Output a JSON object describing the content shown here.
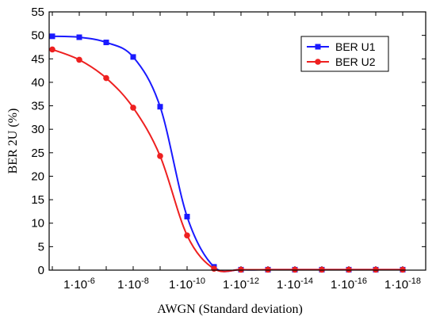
{
  "chart_data": {
    "type": "line",
    "xlabel": "AWGN (Standard deviation)",
    "ylabel": "BER 2U (%)",
    "ylim": [
      0,
      55
    ],
    "yticks": [
      0,
      5,
      10,
      15,
      20,
      25,
      30,
      35,
      40,
      45,
      50,
      55
    ],
    "x_scale": "log-reciprocal",
    "x_tick_labels": [
      {
        "label": "1·10",
        "exponent": "-6",
        "value": "1e-6"
      },
      {
        "label": "1·10",
        "exponent": "-8",
        "value": "1e-8"
      },
      {
        "label": "1·10",
        "exponent": "-10",
        "value": "1e-10"
      },
      {
        "label": "1·10",
        "exponent": "-12",
        "value": "1e-12"
      },
      {
        "label": "1·10",
        "exponent": "-14",
        "value": "1e-14"
      },
      {
        "label": "1·10",
        "exponent": "-16",
        "value": "1e-16"
      },
      {
        "label": "1·10",
        "exponent": "-18",
        "value": "1e-18"
      }
    ],
    "x": [
      "1e-5",
      "1e-6",
      "1e-7",
      "1e-8",
      "1e-9",
      "1e-10",
      "1e-11",
      "1e-12",
      "1e-13",
      "1e-14",
      "1e-15",
      "1e-16",
      "1e-17",
      "1e-18"
    ],
    "series": [
      {
        "name": "BER U1",
        "color": "#1a1aff",
        "marker": "square",
        "values": [
          49.8,
          49.6,
          48.5,
          45.4,
          34.8,
          11.4,
          0.7,
          0.1,
          0.1,
          0.1,
          0.1,
          0.1,
          0.1,
          0.1
        ]
      },
      {
        "name": "BER U2",
        "color": "#ee2020",
        "marker": "circle",
        "values": [
          47.0,
          44.8,
          40.9,
          34.6,
          24.3,
          7.4,
          0.3,
          0.1,
          0.1,
          0.1,
          0.1,
          0.1,
          0.1,
          0.1
        ]
      }
    ],
    "grid": false,
    "legend_position": "top-right"
  }
}
